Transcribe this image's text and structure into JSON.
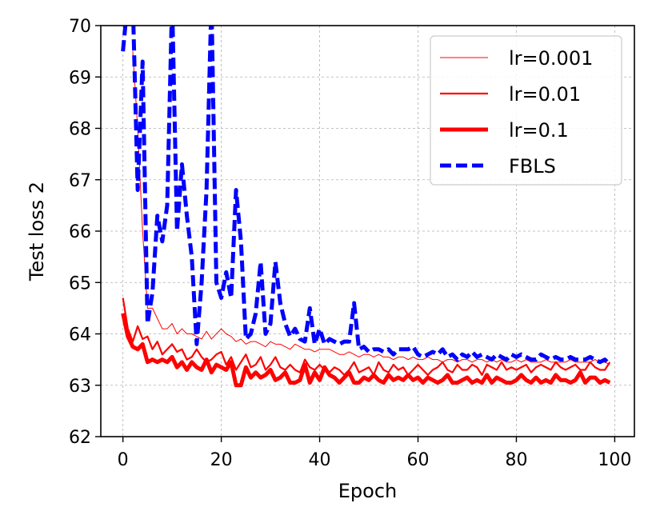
{
  "chart_data": {
    "type": "line",
    "xlabel": "Epoch",
    "ylabel": "Test loss 2",
    "xlim": [
      -4.5,
      104
    ],
    "ylim": [
      62,
      70
    ],
    "xticks": [
      0,
      20,
      40,
      60,
      80,
      100
    ],
    "yticks": [
      62,
      63,
      64,
      65,
      66,
      67,
      68,
      69,
      70
    ],
    "grid": true,
    "legend_position": "top-right",
    "x": [
      0,
      1,
      2,
      3,
      4,
      5,
      6,
      7,
      8,
      9,
      10,
      11,
      12,
      13,
      14,
      15,
      16,
      17,
      18,
      19,
      20,
      21,
      22,
      23,
      24,
      25,
      26,
      27,
      28,
      29,
      30,
      31,
      32,
      33,
      34,
      35,
      36,
      37,
      38,
      39,
      40,
      41,
      42,
      43,
      44,
      45,
      46,
      47,
      48,
      49,
      50,
      51,
      52,
      53,
      54,
      55,
      56,
      57,
      58,
      59,
      60,
      61,
      62,
      63,
      64,
      65,
      66,
      67,
      68,
      69,
      70,
      71,
      72,
      73,
      74,
      75,
      76,
      77,
      78,
      79,
      80,
      81,
      82,
      83,
      84,
      85,
      86,
      87,
      88,
      89,
      90,
      91,
      92,
      93,
      94,
      95,
      96,
      97,
      98,
      99
    ],
    "series": [
      {
        "name": "lr=0.001",
        "color": "#ff0000",
        "style": "solid-thin",
        "values": [
          null,
          null,
          69.5,
          68.0,
          66.0,
          64.5,
          64.5,
          64.3,
          64.1,
          64.1,
          64.2,
          64.0,
          64.1,
          64.0,
          64.0,
          63.95,
          63.9,
          64.05,
          63.9,
          64.0,
          64.1,
          64.0,
          63.95,
          63.85,
          63.9,
          63.8,
          63.85,
          63.85,
          63.8,
          63.75,
          63.85,
          63.8,
          63.8,
          63.75,
          63.7,
          63.8,
          63.75,
          63.7,
          63.7,
          63.65,
          63.7,
          63.7,
          63.7,
          63.65,
          63.6,
          63.6,
          63.65,
          63.6,
          63.55,
          63.6,
          63.6,
          63.55,
          63.6,
          63.55,
          63.55,
          63.5,
          63.55,
          63.55,
          63.5,
          63.55,
          63.5,
          63.5,
          63.55,
          63.5,
          63.5,
          63.45,
          63.5,
          63.5,
          63.45,
          63.5,
          63.5,
          63.45,
          63.5,
          63.5,
          63.45,
          63.5,
          63.45,
          63.5,
          63.45,
          63.45,
          63.5,
          63.45,
          63.5,
          63.45,
          63.45,
          63.45,
          63.5,
          63.45,
          63.45,
          63.45,
          63.45,
          63.5,
          63.45,
          63.45,
          63.45,
          63.45,
          63.5,
          63.45,
          63.45,
          63.4
        ]
      },
      {
        "name": "lr=0.01",
        "color": "#ff0000",
        "style": "solid-medium",
        "values": [
          64.7,
          64.1,
          63.85,
          64.15,
          63.9,
          63.95,
          63.7,
          63.85,
          63.6,
          63.7,
          63.8,
          63.65,
          63.7,
          63.5,
          63.55,
          63.7,
          63.55,
          63.45,
          63.5,
          63.6,
          63.65,
          63.4,
          63.55,
          63.3,
          63.45,
          63.6,
          63.35,
          63.4,
          63.55,
          63.3,
          63.4,
          63.55,
          63.35,
          63.3,
          63.4,
          63.3,
          63.25,
          63.5,
          63.35,
          63.3,
          63.4,
          63.3,
          63.25,
          63.35,
          63.3,
          63.2,
          63.3,
          63.45,
          63.25,
          63.3,
          63.35,
          63.2,
          63.45,
          63.3,
          63.25,
          63.4,
          63.3,
          63.35,
          63.2,
          63.3,
          63.4,
          63.3,
          63.2,
          63.3,
          63.35,
          63.45,
          63.3,
          63.25,
          63.4,
          63.3,
          63.3,
          63.4,
          63.35,
          63.2,
          63.4,
          63.35,
          63.3,
          63.45,
          63.3,
          63.35,
          63.3,
          63.35,
          63.4,
          63.25,
          63.35,
          63.4,
          63.35,
          63.3,
          63.45,
          63.35,
          63.3,
          63.35,
          63.4,
          63.3,
          63.3,
          63.45,
          63.35,
          63.3,
          63.3,
          63.45
        ]
      },
      {
        "name": "lr=0.1",
        "color": "#ff0000",
        "style": "solid-thick",
        "values": [
          64.4,
          63.95,
          63.75,
          63.7,
          63.8,
          63.45,
          63.5,
          63.45,
          63.5,
          63.45,
          63.55,
          63.35,
          63.45,
          63.3,
          63.45,
          63.35,
          63.3,
          63.5,
          63.25,
          63.4,
          63.35,
          63.3,
          63.45,
          63.0,
          63.0,
          63.35,
          63.15,
          63.25,
          63.15,
          63.2,
          63.3,
          63.1,
          63.15,
          63.25,
          63.05,
          63.05,
          63.1,
          63.4,
          63.05,
          63.25,
          63.1,
          63.35,
          63.2,
          63.15,
          63.05,
          63.15,
          63.25,
          63.05,
          63.05,
          63.15,
          63.1,
          63.2,
          63.1,
          63.05,
          63.2,
          63.1,
          63.15,
          63.1,
          63.2,
          63.1,
          63.15,
          63.05,
          63.15,
          63.1,
          63.05,
          63.1,
          63.2,
          63.05,
          63.05,
          63.1,
          63.15,
          63.05,
          63.1,
          63.05,
          63.2,
          63.05,
          63.15,
          63.1,
          63.05,
          63.05,
          63.1,
          63.2,
          63.1,
          63.05,
          63.15,
          63.05,
          63.1,
          63.05,
          63.2,
          63.1,
          63.1,
          63.05,
          63.1,
          63.25,
          63.05,
          63.15,
          63.15,
          63.05,
          63.1,
          63.05
        ]
      },
      {
        "name": "FBLS",
        "color": "#0000ff",
        "style": "dashed",
        "values": [
          69.5,
          70.5,
          70.5,
          66.8,
          69.3,
          64.2,
          64.8,
          66.3,
          65.8,
          66.5,
          70.5,
          66.0,
          67.3,
          66.3,
          65.5,
          63.8,
          65.0,
          66.8,
          70.5,
          65.0,
          64.7,
          65.2,
          64.7,
          66.8,
          65.8,
          63.9,
          64.0,
          64.4,
          65.4,
          64.0,
          64.2,
          65.4,
          64.6,
          64.2,
          63.95,
          64.1,
          63.9,
          63.85,
          64.5,
          63.8,
          64.1,
          63.8,
          63.9,
          63.85,
          63.8,
          63.85,
          63.85,
          64.6,
          63.7,
          63.75,
          63.65,
          63.7,
          63.7,
          63.65,
          63.7,
          63.6,
          63.7,
          63.7,
          63.7,
          63.75,
          63.6,
          63.55,
          63.6,
          63.65,
          63.6,
          63.7,
          63.55,
          63.6,
          63.5,
          63.6,
          63.55,
          63.65,
          63.55,
          63.6,
          63.55,
          63.5,
          63.6,
          63.55,
          63.5,
          63.6,
          63.55,
          63.6,
          63.55,
          63.5,
          63.5,
          63.6,
          63.55,
          63.5,
          63.55,
          63.5,
          63.5,
          63.55,
          63.5,
          63.5,
          63.5,
          63.55,
          63.5,
          63.45,
          63.5,
          63.4
        ]
      }
    ]
  }
}
